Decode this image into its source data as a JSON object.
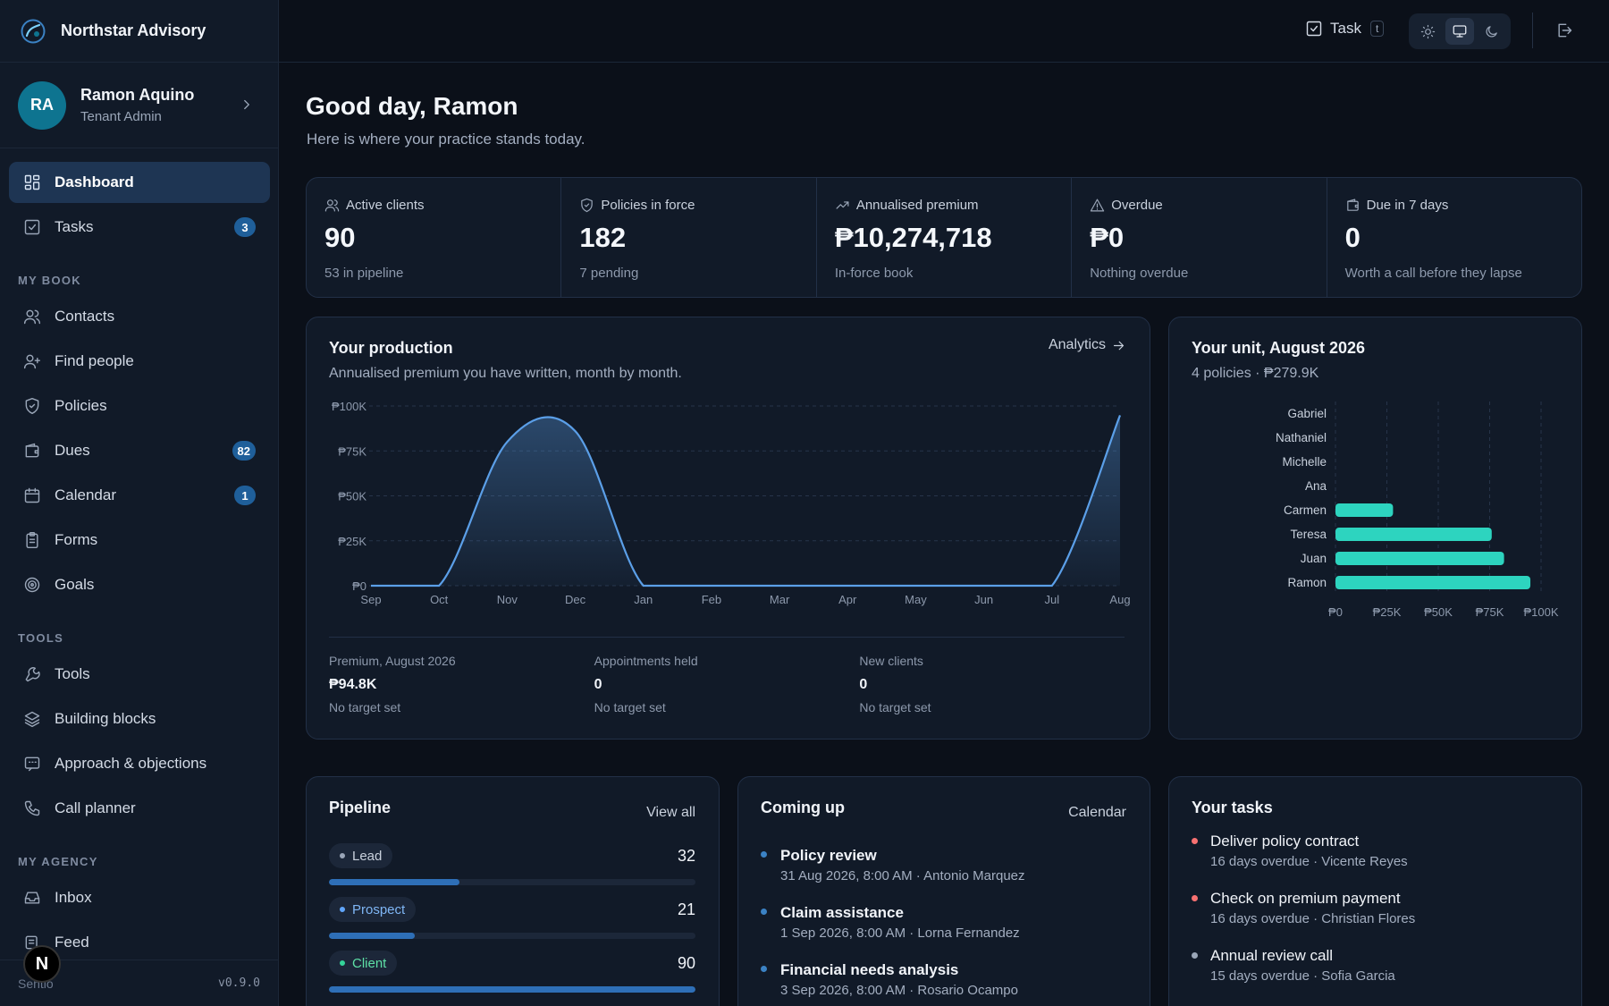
{
  "brand": {
    "name": "Northstar Advisory"
  },
  "user": {
    "initials": "RA",
    "name": "Ramon Aquino",
    "role": "Tenant Admin"
  },
  "nav": {
    "primary": [
      {
        "label": "Dashboard",
        "icon": "dashboard-icon",
        "active": true
      },
      {
        "label": "Tasks",
        "icon": "tasks-icon",
        "badge": "3"
      }
    ],
    "my_book_label": "MY BOOK",
    "my_book": [
      {
        "label": "Contacts",
        "icon": "contacts-icon"
      },
      {
        "label": "Find people",
        "icon": "user-plus-icon"
      },
      {
        "label": "Policies",
        "icon": "shield-icon"
      },
      {
        "label": "Dues",
        "icon": "wallet-icon",
        "badge": "82"
      },
      {
        "label": "Calendar",
        "icon": "calendar-icon",
        "badge": "1"
      },
      {
        "label": "Forms",
        "icon": "clipboard-icon"
      },
      {
        "label": "Goals",
        "icon": "target-icon"
      }
    ],
    "tools_label": "TOOLS",
    "tools": [
      {
        "label": "Tools",
        "icon": "wrench-icon"
      },
      {
        "label": "Building blocks",
        "icon": "layers-icon"
      },
      {
        "label": "Approach & objections",
        "icon": "chat-icon"
      },
      {
        "label": "Call planner",
        "icon": "phone-icon"
      }
    ],
    "agency_label": "MY AGENCY",
    "agency": [
      {
        "label": "Inbox",
        "icon": "inbox-icon"
      },
      {
        "label": "Feed",
        "icon": "feed-icon"
      }
    ]
  },
  "footer": {
    "brand": "Sentio",
    "version": "v0.9.0",
    "n_badge": "N"
  },
  "header": {
    "task_label": "Task",
    "task_shortcut": "t"
  },
  "greeting": {
    "title": "Good day, Ramon",
    "subtitle": "Here is where your practice stands today."
  },
  "kpis": [
    {
      "label": "Active clients",
      "icon": "users-icon",
      "value": "90",
      "sub": "53 in pipeline"
    },
    {
      "label": "Policies in force",
      "icon": "shield-check-icon",
      "value": "182",
      "sub": "7 pending"
    },
    {
      "label": "Annualised premium",
      "icon": "trending-up-icon",
      "value": "₱10,274,718",
      "sub": "In-force book"
    },
    {
      "label": "Overdue",
      "icon": "alert-triangle-icon",
      "value": "₱0",
      "sub": "Nothing overdue"
    },
    {
      "label": "Due in 7 days",
      "icon": "wallet-icon",
      "value": "0",
      "sub": "Worth a call before they lapse"
    }
  ],
  "production": {
    "title": "Your production",
    "subtitle": "Annualised premium you have written, month by month.",
    "link": "Analytics",
    "metrics": [
      {
        "label": "Premium, August 2026",
        "value": "₱94.8K",
        "sub": "No target set"
      },
      {
        "label": "Appointments held",
        "value": "0",
        "sub": "No target set"
      },
      {
        "label": "New clients",
        "value": "0",
        "sub": "No target set"
      }
    ]
  },
  "unit": {
    "title": "Your unit, August 2026",
    "subtitle": "4 policies · ₱279.9K"
  },
  "pipeline": {
    "title": "Pipeline",
    "link": "View all",
    "stages": [
      {
        "label": "Lead",
        "count": "32",
        "value": 32,
        "dot": "#9aa6b8",
        "text": "#c9d1dd"
      },
      {
        "label": "Prospect",
        "count": "21",
        "value": 21,
        "dot": "#60a5fa",
        "text": "#7fb6f5"
      },
      {
        "label": "Client",
        "count": "90",
        "value": 90,
        "dot": "#34d399",
        "text": "#5ee0a6"
      }
    ],
    "max": 90
  },
  "coming_up": {
    "title": "Coming up",
    "link": "Calendar",
    "events": [
      {
        "title": "Policy review",
        "sub": "31 Aug 2026, 8:00 AM · Antonio Marquez"
      },
      {
        "title": "Claim assistance",
        "sub": "1 Sep 2026, 8:00 AM · Lorna Fernandez"
      },
      {
        "title": "Financial needs analysis",
        "sub": "3 Sep 2026, 8:00 AM · Rosario Ocampo"
      }
    ]
  },
  "tasks": {
    "title": "Your tasks",
    "items": [
      {
        "title": "Deliver policy contract",
        "sub": "16 days overdue · Vicente Reyes",
        "dot": "#f87171"
      },
      {
        "title": "Check on premium payment",
        "sub": "16 days overdue · Christian Flores",
        "dot": "#f87171"
      },
      {
        "title": "Annual review call",
        "sub": "15 days overdue · Sofia Garcia",
        "dot": "#9aa6b8"
      }
    ]
  },
  "chart_data": [
    {
      "type": "area",
      "x": [
        "Sep",
        "Oct",
        "Nov",
        "Dec",
        "Jan",
        "Feb",
        "Mar",
        "Apr",
        "May",
        "Jun",
        "Jul",
        "Aug"
      ],
      "series": [
        {
          "values": [
            0,
            0,
            80000,
            86000,
            0,
            0,
            0,
            0,
            0,
            0,
            0,
            94800
          ]
        }
      ],
      "yticks": [
        "₱0",
        "₱25K",
        "₱50K",
        "₱75K",
        "₱100K"
      ],
      "ylim": [
        0,
        100000
      ],
      "grid": true,
      "color": "#5b9fe8"
    },
    {
      "type": "bar",
      "orientation": "horizontal",
      "categories": [
        "Gabriel",
        "Nathaniel",
        "Michelle",
        "Ana",
        "Carmen",
        "Teresa",
        "Juan",
        "Ramon"
      ],
      "values": [
        0,
        0,
        0,
        0,
        28000,
        76000,
        82000,
        94800
      ],
      "xticks": [
        "₱0",
        "₱25K",
        "₱50K",
        "₱75K",
        "₱100K"
      ],
      "xlim": [
        0,
        100000
      ],
      "grid": true,
      "color": "#2dd4bf"
    }
  ]
}
